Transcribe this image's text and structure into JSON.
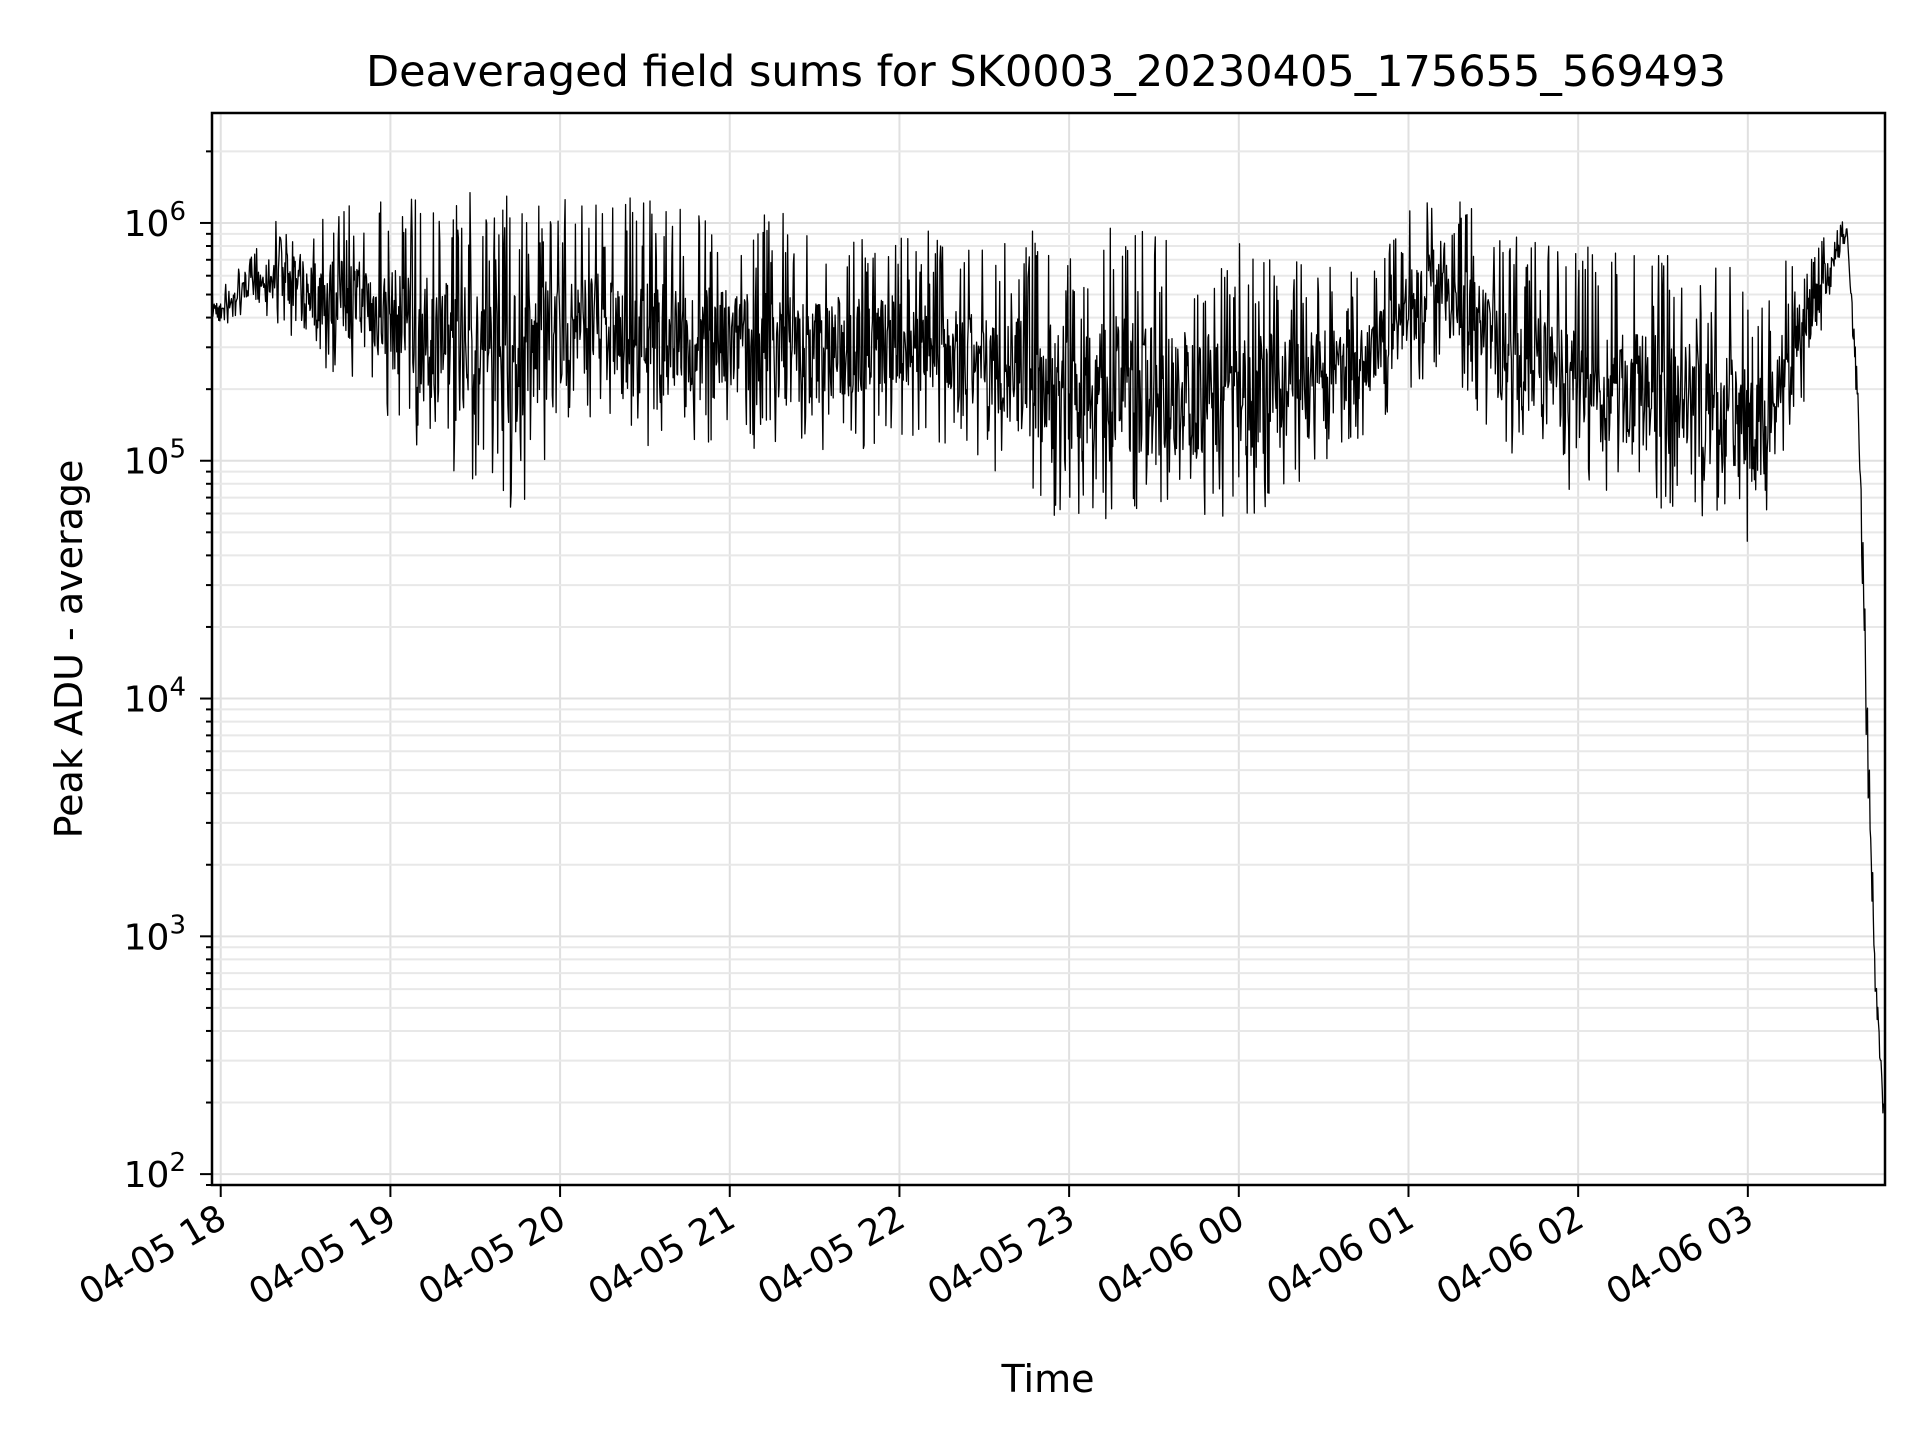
{
  "chart_data": {
    "type": "line",
    "title": "Deaveraged field sums for SK0003_20230405_175655_569493",
    "xlabel": "Time",
    "ylabel": "Peak ADU - average",
    "yscale": "log",
    "ylim": [
      90,
      2900000
    ],
    "xlim": [
      "2023-04-05 17:56:55",
      "2023-04-06 03:48:30"
    ],
    "grid": true,
    "x_ticks": [
      {
        "at": "2023-04-05 18:00",
        "label": "04-05 18"
      },
      {
        "at": "2023-04-05 19:00",
        "label": "04-05 19"
      },
      {
        "at": "2023-04-05 20:00",
        "label": "04-05 20"
      },
      {
        "at": "2023-04-05 21:00",
        "label": "04-05 21"
      },
      {
        "at": "2023-04-05 22:00",
        "label": "04-05 22"
      },
      {
        "at": "2023-04-05 23:00",
        "label": "04-05 23"
      },
      {
        "at": "2023-04-06 00:00",
        "label": "04-06 00"
      },
      {
        "at": "2023-04-06 01:00",
        "label": "04-06 01"
      },
      {
        "at": "2023-04-06 02:00",
        "label": "04-06 02"
      },
      {
        "at": "2023-04-06 03:00",
        "label": "04-06 03"
      }
    ],
    "y_ticks": [
      {
        "value": 100,
        "base": "10",
        "exp": "2"
      },
      {
        "value": 1000,
        "base": "10",
        "exp": "3"
      },
      {
        "value": 10000,
        "base": "10",
        "exp": "4"
      },
      {
        "value": 100000,
        "base": "10",
        "exp": "5"
      },
      {
        "value": 1000000,
        "base": "10",
        "exp": "6"
      }
    ],
    "series": [
      {
        "color": "#000000",
        "envelope": [
          {
            "t": "2023-04-05 17:57",
            "low": 350000,
            "high": 550000
          },
          {
            "t": "2023-04-05 18:10",
            "low": 420000,
            "high": 700000
          },
          {
            "t": "2023-04-05 18:20",
            "low": 380000,
            "high": 1100000
          },
          {
            "t": "2023-04-05 18:35",
            "low": 250000,
            "high": 1200000
          },
          {
            "t": "2023-04-05 18:50",
            "low": 200000,
            "high": 1300000
          },
          {
            "t": "2023-04-05 19:10",
            "low": 110000,
            "high": 1400000
          },
          {
            "t": "2023-04-05 19:30",
            "low": 80000,
            "high": 1400000
          },
          {
            "t": "2023-04-05 19:45",
            "low": 60000,
            "high": 1500000
          },
          {
            "t": "2023-04-05 20:05",
            "low": 150000,
            "high": 1300000
          },
          {
            "t": "2023-04-05 20:30",
            "low": 110000,
            "high": 1300000
          },
          {
            "t": "2023-04-05 21:00",
            "low": 100000,
            "high": 1200000
          },
          {
            "t": "2023-04-05 21:30",
            "low": 100000,
            "high": 1100000
          },
          {
            "t": "2023-04-05 22:00",
            "low": 120000,
            "high": 1000000
          },
          {
            "t": "2023-04-05 22:30",
            "low": 100000,
            "high": 800000
          },
          {
            "t": "2023-04-05 22:50",
            "low": 60000,
            "high": 1000000
          },
          {
            "t": "2023-04-05 23:15",
            "low": 55000,
            "high": 1100000
          },
          {
            "t": "2023-04-05 23:40",
            "low": 55000,
            "high": 900000
          },
          {
            "t": "2023-04-06 00:10",
            "low": 60000,
            "high": 800000
          },
          {
            "t": "2023-04-06 00:45",
            "low": 130000,
            "high": 600000
          },
          {
            "t": "2023-04-06 01:10",
            "low": 250000,
            "high": 1700000
          },
          {
            "t": "2023-04-06 01:30",
            "low": 120000,
            "high": 900000
          },
          {
            "t": "2023-04-06 02:00",
            "low": 70000,
            "high": 800000
          },
          {
            "t": "2023-04-06 02:40",
            "low": 60000,
            "high": 750000
          },
          {
            "t": "2023-04-06 03:05",
            "low": 40000,
            "high": 600000
          },
          {
            "t": "2023-04-06 03:25",
            "low": 300000,
            "high": 900000
          },
          {
            "t": "2023-04-06 03:35",
            "low": 900000,
            "high": 1100000
          },
          {
            "t": "2023-04-06 03:39",
            "low": 100000,
            "high": 300000
          },
          {
            "t": "2023-04-06 03:42",
            "low": 1500,
            "high": 55000
          },
          {
            "t": "2023-04-06 03:45",
            "low": 400,
            "high": 1200
          },
          {
            "t": "2023-04-06 03:48",
            "low": 130,
            "high": 250
          }
        ]
      }
    ]
  }
}
